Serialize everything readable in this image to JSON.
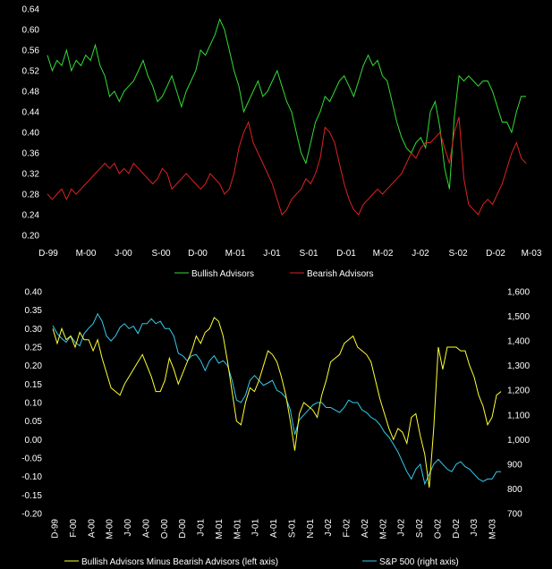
{
  "chart_data": [
    {
      "type": "line",
      "title": "",
      "xlabel": "",
      "ylabel": "",
      "ylim": [
        0.2,
        0.64
      ],
      "yticks": [
        "0.64",
        "0.60",
        "0.56",
        "0.52",
        "0.48",
        "0.44",
        "0.40",
        "0.36",
        "0.32",
        "0.28",
        "0.24",
        "0.20"
      ],
      "xticks": [
        "D-99",
        "M-00",
        "J-00",
        "S-00",
        "D-00",
        "M-01",
        "J-01",
        "S-01",
        "D-01",
        "M-02",
        "J-02",
        "S-02",
        "D-02",
        "M-03"
      ],
      "grid": false,
      "legend_placement": "bottom",
      "series": [
        {
          "name": "Bullish Advisors",
          "color": "#33dd33",
          "values": [
            0.55,
            0.52,
            0.54,
            0.53,
            0.56,
            0.52,
            0.54,
            0.53,
            0.55,
            0.54,
            0.57,
            0.53,
            0.51,
            0.47,
            0.48,
            0.46,
            0.48,
            0.49,
            0.5,
            0.52,
            0.54,
            0.51,
            0.49,
            0.46,
            0.47,
            0.49,
            0.51,
            0.48,
            0.45,
            0.48,
            0.5,
            0.52,
            0.56,
            0.55,
            0.57,
            0.59,
            0.62,
            0.6,
            0.56,
            0.52,
            0.49,
            0.44,
            0.46,
            0.48,
            0.5,
            0.47,
            0.48,
            0.5,
            0.52,
            0.49,
            0.46,
            0.44,
            0.4,
            0.36,
            0.34,
            0.38,
            0.42,
            0.44,
            0.47,
            0.46,
            0.48,
            0.5,
            0.51,
            0.49,
            0.47,
            0.5,
            0.53,
            0.55,
            0.53,
            0.54,
            0.51,
            0.5,
            0.46,
            0.42,
            0.39,
            0.37,
            0.36,
            0.38,
            0.39,
            0.37,
            0.44,
            0.46,
            0.41,
            0.33,
            0.29,
            0.43,
            0.51,
            0.5,
            0.51,
            0.5,
            0.49,
            0.5,
            0.5,
            0.48,
            0.45,
            0.42,
            0.42,
            0.4,
            0.44,
            0.47,
            0.47
          ]
        },
        {
          "name": "Bearish Advisors",
          "color": "#dd2222",
          "values": [
            0.28,
            0.27,
            0.28,
            0.29,
            0.27,
            0.29,
            0.28,
            0.29,
            0.3,
            0.31,
            0.32,
            0.33,
            0.34,
            0.33,
            0.34,
            0.32,
            0.33,
            0.32,
            0.34,
            0.33,
            0.32,
            0.31,
            0.3,
            0.31,
            0.33,
            0.32,
            0.29,
            0.3,
            0.31,
            0.32,
            0.31,
            0.3,
            0.29,
            0.3,
            0.32,
            0.31,
            0.3,
            0.28,
            0.29,
            0.32,
            0.37,
            0.4,
            0.42,
            0.38,
            0.36,
            0.34,
            0.32,
            0.3,
            0.27,
            0.24,
            0.25,
            0.27,
            0.28,
            0.29,
            0.31,
            0.3,
            0.32,
            0.35,
            0.41,
            0.4,
            0.38,
            0.34,
            0.3,
            0.27,
            0.25,
            0.24,
            0.26,
            0.27,
            0.28,
            0.29,
            0.28,
            0.29,
            0.3,
            0.31,
            0.32,
            0.34,
            0.36,
            0.35,
            0.37,
            0.38,
            0.38,
            0.39,
            0.4,
            0.37,
            0.34,
            0.4,
            0.43,
            0.31,
            0.26,
            0.25,
            0.24,
            0.26,
            0.27,
            0.26,
            0.28,
            0.3,
            0.33,
            0.36,
            0.38,
            0.35,
            0.34
          ]
        }
      ]
    },
    {
      "type": "line",
      "title": "",
      "xlabel": "",
      "ylabel_left": "",
      "ylabel_right": "",
      "ylim_left": [
        -0.2,
        0.4
      ],
      "ylim_right": [
        700,
        1600
      ],
      "yticks_left": [
        "0.40",
        "0.35",
        "0.30",
        "0.25",
        "0.20",
        "0.15",
        "0.10",
        "0.05",
        "0.00",
        "-0.05",
        "-0.10",
        "-0.15",
        "-0.20"
      ],
      "yticks_right": [
        "1,600",
        "1,500",
        "1,400",
        "1,300",
        "1,200",
        "1,100",
        "1,000",
        "900",
        "800",
        "700"
      ],
      "xticks": [
        "D-99",
        "F-00",
        "A-00",
        "M-00",
        "J-00",
        "A-00",
        "O-00",
        "D-00",
        "J-01",
        "M-01",
        "M-01",
        "J-01",
        "A-01",
        "S-01",
        "N-01",
        "J-02",
        "F-02",
        "A-02",
        "M-02",
        "J-02",
        "S-02",
        "O-02",
        "D-02",
        "J-03",
        "M-03"
      ],
      "grid": false,
      "legend_placement": "bottom",
      "series": [
        {
          "name": "Bullish Advisors Minus Bearish Advisors (left axis)",
          "axis": "left",
          "color": "#ffff33",
          "values": [
            0.3,
            0.26,
            0.3,
            0.27,
            0.28,
            0.25,
            0.29,
            0.27,
            0.27,
            0.24,
            0.27,
            0.22,
            0.18,
            0.14,
            0.13,
            0.12,
            0.15,
            0.17,
            0.19,
            0.21,
            0.23,
            0.2,
            0.17,
            0.13,
            0.13,
            0.16,
            0.22,
            0.19,
            0.15,
            0.18,
            0.21,
            0.24,
            0.28,
            0.26,
            0.29,
            0.3,
            0.33,
            0.32,
            0.28,
            0.21,
            0.13,
            0.05,
            0.04,
            0.1,
            0.14,
            0.13,
            0.16,
            0.2,
            0.24,
            0.23,
            0.21,
            0.17,
            0.12,
            0.05,
            -0.03,
            0.07,
            0.1,
            0.09,
            0.08,
            0.06,
            0.12,
            0.16,
            0.21,
            0.22,
            0.23,
            0.26,
            0.27,
            0.28,
            0.25,
            0.24,
            0.23,
            0.21,
            0.16,
            0.11,
            0.07,
            0.03,
            0.0,
            0.03,
            0.02,
            -0.01,
            0.06,
            0.07,
            0.01,
            -0.04,
            -0.13,
            0.03,
            0.25,
            0.19,
            0.25,
            0.25,
            0.25,
            0.24,
            0.24,
            0.2,
            0.17,
            0.12,
            0.09,
            0.04,
            0.06,
            0.12,
            0.13
          ]
        },
        {
          "name": "S&P 500 (right axis)",
          "axis": "right",
          "color": "#33ccee",
          "values": [
            1462,
            1430,
            1410,
            1395,
            1420,
            1395,
            1380,
            1430,
            1452,
            1470,
            1510,
            1480,
            1420,
            1400,
            1420,
            1455,
            1470,
            1450,
            1460,
            1430,
            1470,
            1470,
            1490,
            1470,
            1480,
            1450,
            1450,
            1420,
            1350,
            1340,
            1320,
            1340,
            1345,
            1320,
            1280,
            1320,
            1340,
            1310,
            1320,
            1300,
            1240,
            1160,
            1150,
            1180,
            1240,
            1260,
            1240,
            1220,
            1230,
            1240,
            1200,
            1190,
            1170,
            1120,
            1020,
            1080,
            1100,
            1120,
            1140,
            1150,
            1150,
            1130,
            1130,
            1120,
            1110,
            1130,
            1160,
            1150,
            1150,
            1120,
            1110,
            1090,
            1080,
            1060,
            1030,
            1010,
            980,
            950,
            910,
            870,
            840,
            880,
            900,
            820,
            860,
            900,
            920,
            900,
            880,
            870,
            900,
            910,
            890,
            880,
            860,
            840,
            830,
            840,
            840,
            870,
            870
          ]
        }
      ]
    }
  ]
}
